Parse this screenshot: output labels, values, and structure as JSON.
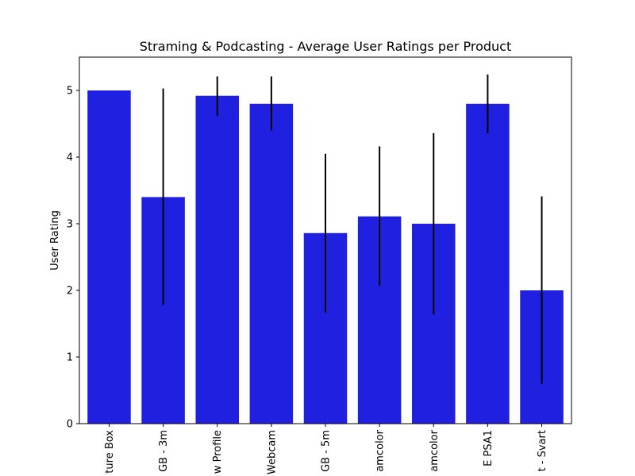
{
  "chart_data": {
    "type": "bar",
    "title": "Straming & Podcasting - Average User Ratings per Product",
    "xlabel": "",
    "ylabel": "User Rating",
    "ylim": [
      0,
      5.5
    ],
    "yticks": [
      0,
      1,
      2,
      3,
      4,
      5
    ],
    "grid": false,
    "bar_color": "#2020e0",
    "errorbar_color": "#000000",
    "categories": [
      "ture Box",
      "GB - 3m",
      "w Profile",
      "Webcam",
      "GB - 5m",
      "amcolor",
      "amcolor",
      "E  PSA1",
      "t - Svart"
    ],
    "series": [
      {
        "values": [
          5.0,
          3.4,
          4.92,
          4.8,
          2.86,
          3.11,
          3.0,
          4.8,
          2.0
        ],
        "error_low": [
          5.0,
          1.78,
          4.62,
          4.4,
          1.67,
          2.07,
          1.64,
          4.36,
          0.6
        ],
        "error_high": [
          5.0,
          5.03,
          5.21,
          5.21,
          4.05,
          4.16,
          4.36,
          5.24,
          3.41
        ]
      }
    ]
  }
}
